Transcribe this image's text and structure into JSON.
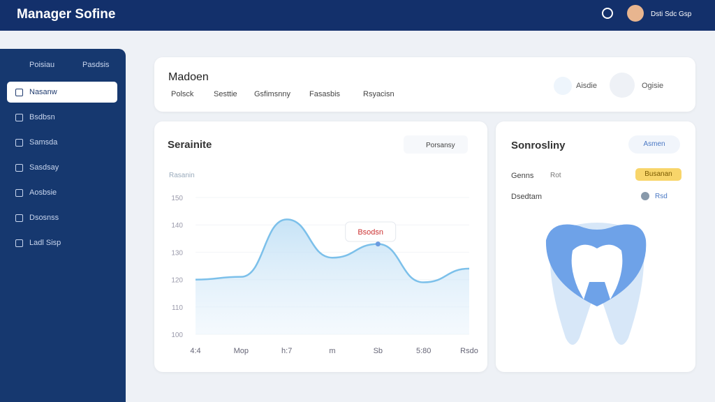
{
  "header": {
    "title": "Manager Sofine",
    "user": "Dsti Sdc Gsp"
  },
  "sidebar": {
    "heading": "Poisiau",
    "heading_right": "Pasdsis",
    "items": [
      "Nasanw",
      "Bsdbsn",
      "Samsda",
      "Sasdsay",
      "Aosbsie",
      "Dsosnss",
      "Ladl Sisp"
    ]
  },
  "overview": {
    "title": "Madoen",
    "tabs": [
      "Polsck",
      "Sesttie",
      "Gsfimsnny",
      "Fasasbis",
      "Rsyacisn"
    ],
    "actions": [
      "Aisdie",
      "Ogisie"
    ]
  },
  "chart_data": {
    "type": "line",
    "title": "Serainite",
    "button": "Porsansy",
    "subtitle": "Rasanin",
    "annotation": "Bsodsn",
    "categories": [
      "4:4",
      "Mop",
      "h:7",
      "m",
      "Sb",
      "5:80",
      "Rsdo"
    ],
    "values": [
      120,
      121,
      142,
      128,
      133,
      119,
      124
    ],
    "color": "#7cc0ea",
    "ylim": [
      100,
      150
    ],
    "yticks": [
      100,
      110,
      120,
      130,
      140,
      150
    ]
  },
  "side_panel": {
    "title": "Sonrosliny",
    "button": "Asmen",
    "rows": [
      {
        "label": "Genns",
        "sub": "Rot",
        "badge": "Busanan"
      },
      {
        "label": "Dsedtam",
        "sub": "Rsd"
      }
    ]
  }
}
